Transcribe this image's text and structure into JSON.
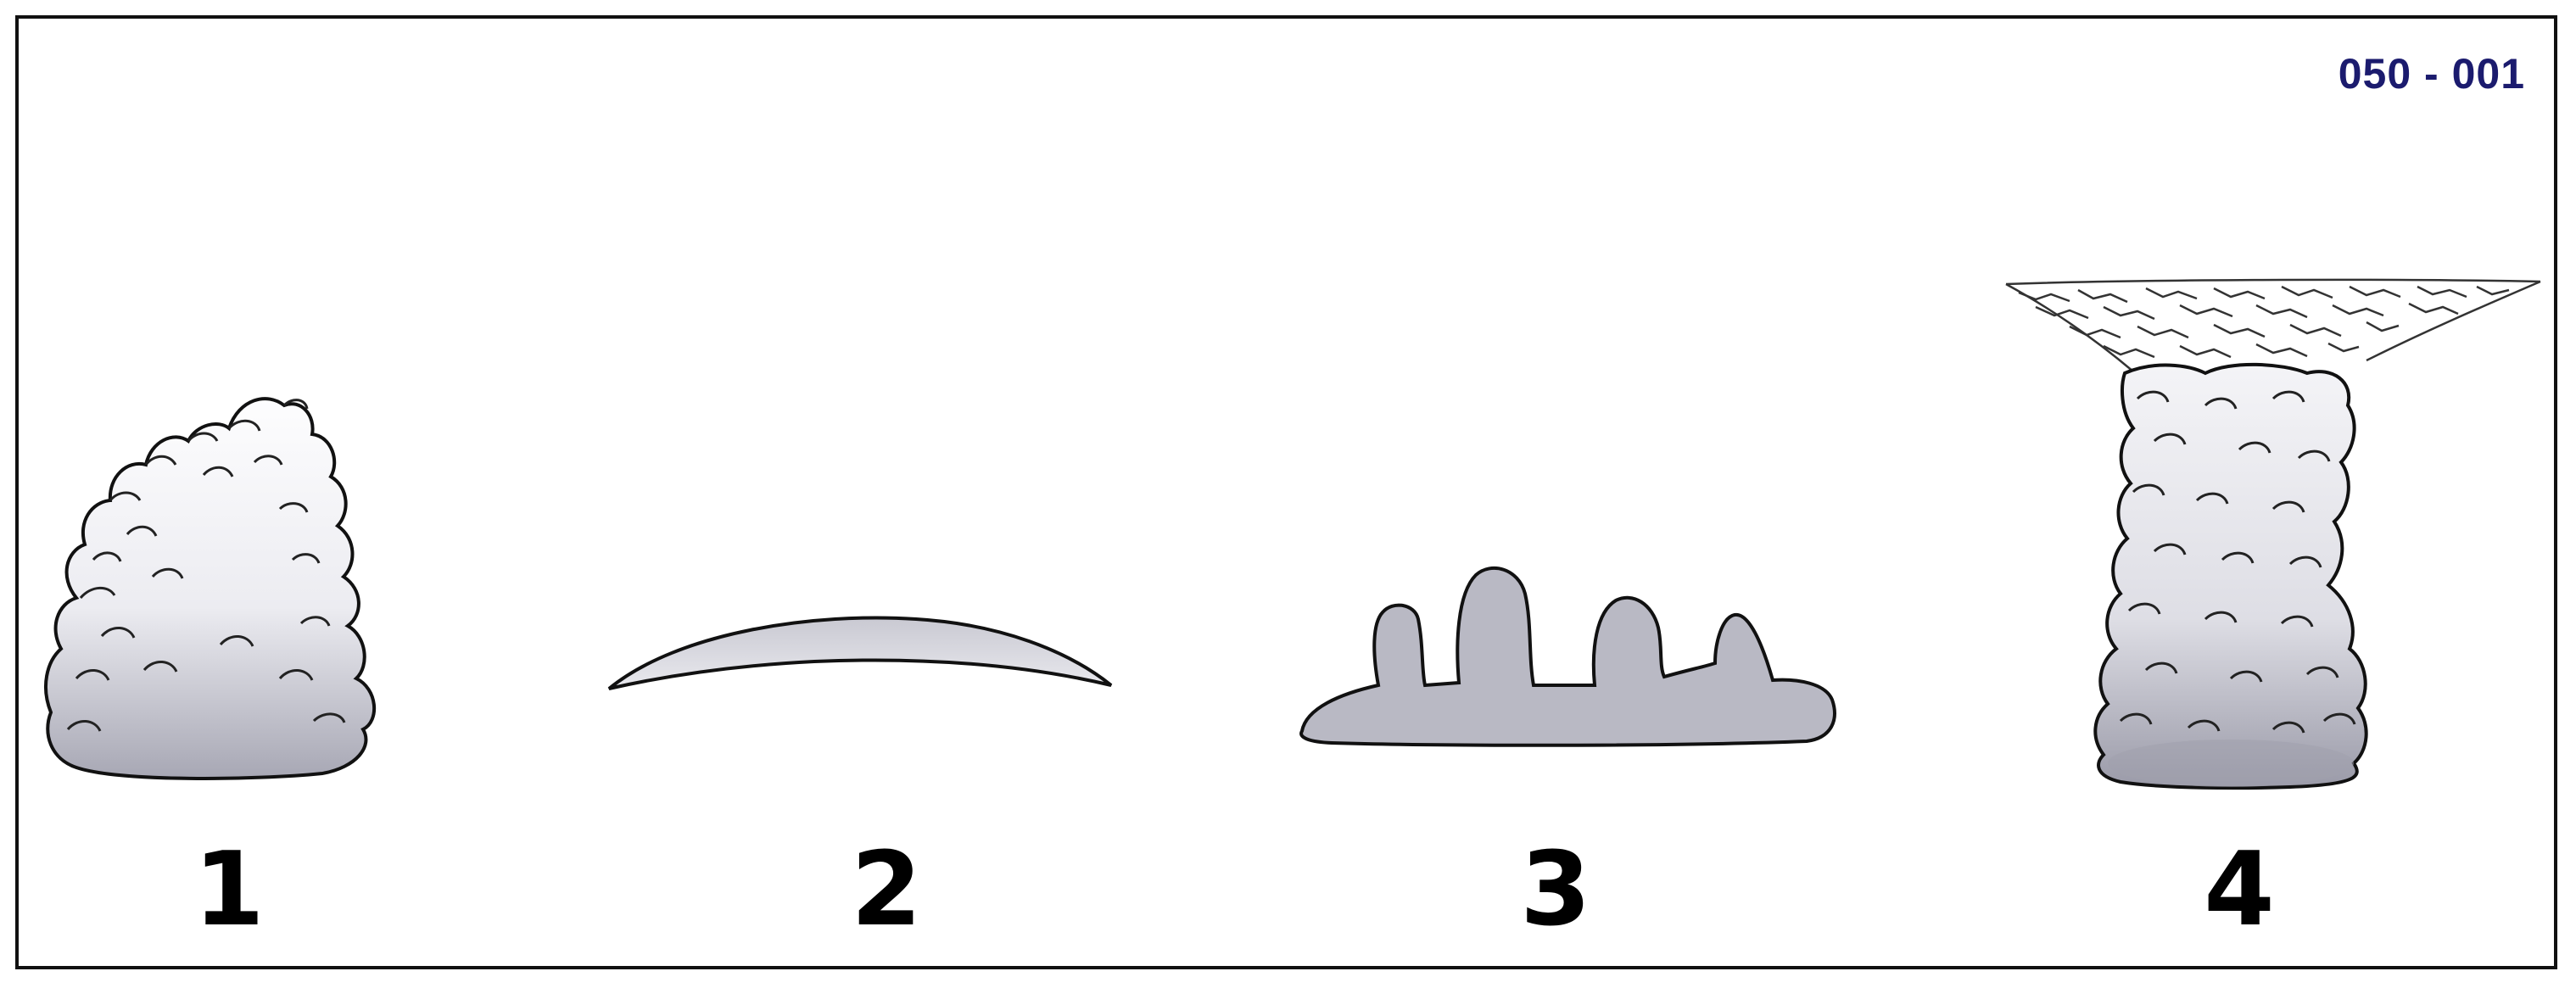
{
  "figure": {
    "code": "050 - 001",
    "items": [
      {
        "number": "1",
        "icon": "cumulus-cloud-icon"
      },
      {
        "number": "2",
        "icon": "lenticular-cloud-icon"
      },
      {
        "number": "3",
        "icon": "castellanus-cloud-icon"
      },
      {
        "number": "4",
        "icon": "cumulonimbus-anvil-cloud-icon"
      }
    ]
  },
  "colors": {
    "cloud_fill_light": "#fbfbfd",
    "cloud_fill_dark": "#a9a9b5",
    "outline": "#111111",
    "code_text": "#1b1b6e"
  }
}
